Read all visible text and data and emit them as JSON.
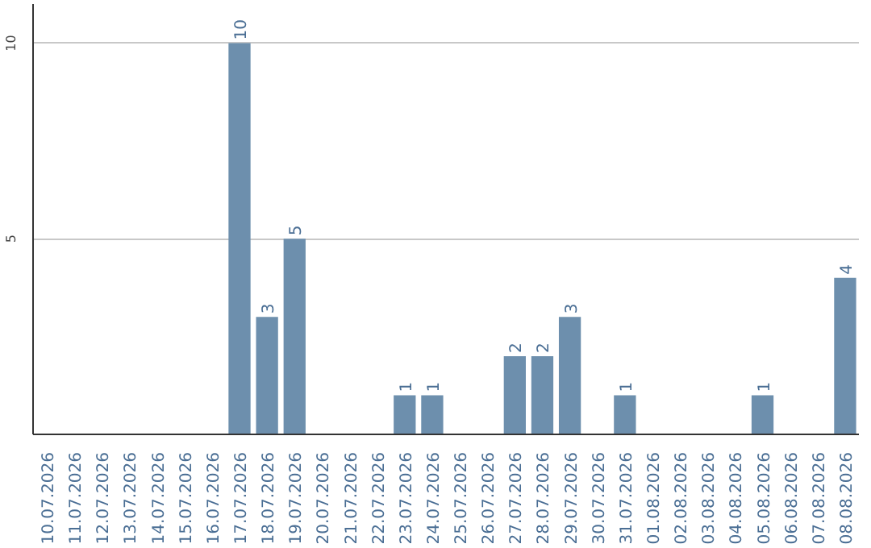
{
  "chart_data": {
    "type": "bar",
    "categories": [
      "10.07.2026",
      "11.07.2026",
      "12.07.2026",
      "13.07.2026",
      "14.07.2026",
      "15.07.2026",
      "16.07.2026",
      "17.07.2026",
      "18.07.2026",
      "19.07.2026",
      "20.07.2026",
      "21.07.2026",
      "22.07.2026",
      "23.07.2026",
      "24.07.2026",
      "25.07.2026",
      "26.07.2026",
      "27.07.2026",
      "28.07.2026",
      "29.07.2026",
      "30.07.2026",
      "31.07.2026",
      "01.08.2026",
      "02.08.2026",
      "03.08.2026",
      "04.08.2026",
      "05.08.2026",
      "06.08.2026",
      "07.08.2026",
      "08.08.2026"
    ],
    "values": [
      0,
      0,
      0,
      0,
      0,
      0,
      0,
      10,
      3,
      5,
      0,
      0,
      0,
      1,
      1,
      0,
      0,
      2,
      2,
      3,
      0,
      1,
      0,
      0,
      0,
      0,
      1,
      0,
      0,
      4
    ],
    "value_labels": [
      null,
      null,
      null,
      null,
      null,
      null,
      null,
      "10",
      "3",
      "5",
      null,
      null,
      null,
      "1",
      "1",
      null,
      null,
      "2",
      "2",
      "3",
      null,
      "1",
      null,
      null,
      null,
      null,
      "1",
      null,
      null,
      "4"
    ],
    "color": "#6d8fad",
    "ylim": [
      0,
      11
    ],
    "yticks": [
      5,
      10
    ],
    "grid": "y"
  }
}
